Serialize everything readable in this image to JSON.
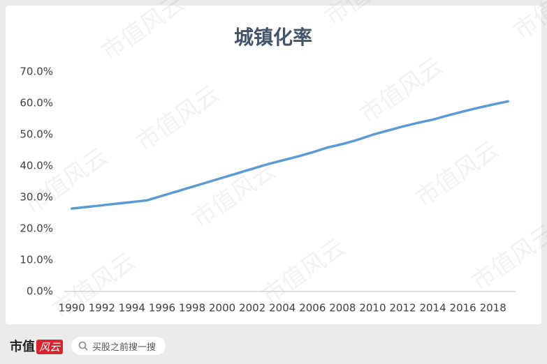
{
  "chart_data": {
    "type": "line",
    "title": "城镇化率",
    "categories": [
      "1990",
      null,
      "1992",
      null,
      "1994",
      null,
      "1996",
      null,
      "1998",
      null,
      "2000",
      null,
      "2002",
      null,
      "2004",
      null,
      "2006",
      null,
      "2008",
      null,
      "2010",
      null,
      "2012",
      null,
      "2014",
      null,
      "2016",
      null,
      "2018",
      null
    ],
    "series": [
      {
        "name": "城镇化率",
        "color": "#5b9bd5",
        "values": [
          26.41,
          26.94,
          27.46,
          27.99,
          28.51,
          29.04,
          30.48,
          31.91,
          33.35,
          34.78,
          36.22,
          37.66,
          39.09,
          40.53,
          41.76,
          42.99,
          44.34,
          45.89,
          46.99,
          48.34,
          49.95,
          51.27,
          52.57,
          53.73,
          54.77,
          56.1,
          57.35,
          58.52,
          59.58,
          60.6
        ]
      }
    ],
    "ylim": [
      0,
      70
    ],
    "yticks": [
      {
        "value": 0,
        "label": "0.0%"
      },
      {
        "value": 10,
        "label": "10.0%"
      },
      {
        "value": 20,
        "label": "20.0%"
      },
      {
        "value": 30,
        "label": "30.0%"
      },
      {
        "value": 40,
        "label": "40.0%"
      },
      {
        "value": 50,
        "label": "50.0%"
      },
      {
        "value": 60,
        "label": "60.0%"
      },
      {
        "value": 70,
        "label": "70.0%"
      }
    ],
    "grid": false
  },
  "footer": {
    "brand": "市值",
    "brand_mark": "风云",
    "search_placeholder": "买股之前搜一搜"
  },
  "watermark": "市值风云"
}
